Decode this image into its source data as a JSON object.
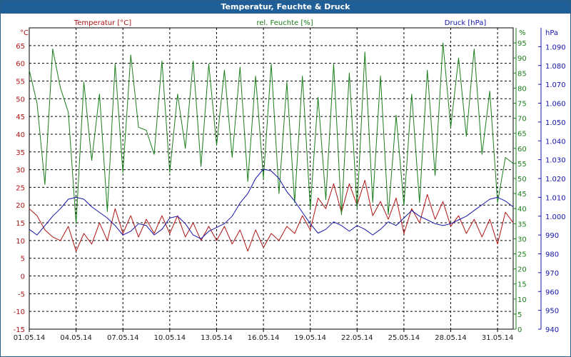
{
  "window": {
    "title": "Temperatur, Feuchte & Druck"
  },
  "chart_data": {
    "type": "line",
    "title": "Temperatur, Feuchte & Druck",
    "grid": true,
    "legend": "top",
    "x_ticks": [
      "01.05.14",
      "04.05.14",
      "07.05.14",
      "10.05.14",
      "13.05.14",
      "16.05.14",
      "19.05.14",
      "22.05.14",
      "25.05.14",
      "28.05.14",
      "31.05.14"
    ],
    "xlim": [
      "01.05.14",
      "01.06.14"
    ],
    "axes": {
      "temperature": {
        "unit": "°C",
        "ylim": [
          -15,
          70
        ],
        "ticks": [
          -15,
          -10,
          -5,
          0,
          5,
          10,
          15,
          20,
          25,
          30,
          35,
          40,
          45,
          50,
          55,
          60,
          65
        ],
        "color": "#b01414"
      },
      "humidity": {
        "unit": "%",
        "ylim": [
          0,
          100
        ],
        "ticks": [
          0,
          5,
          10,
          15,
          20,
          25,
          30,
          35,
          40,
          45,
          50,
          55,
          60,
          65,
          70,
          75,
          80,
          85,
          90,
          95
        ],
        "color": "#1b7d1b"
      },
      "pressure": {
        "unit": "hPa",
        "ylim": [
          940,
          1100
        ],
        "ticks": [
          "940",
          "950",
          "960",
          "970",
          "980",
          "990",
          "1.000",
          "1.010",
          "1.020",
          "1.030",
          "1.040",
          "1.050",
          "1.060",
          "1.070",
          "1.080",
          "1.090"
        ],
        "color": "#1414a8"
      }
    },
    "series": [
      {
        "name": "Temperatur [°C]",
        "axis": "temperature",
        "color": "#b01414",
        "points": [
          [
            "01.05.14",
            19
          ],
          [
            "01.05.14 12h",
            17
          ],
          [
            "02.05.14",
            13
          ],
          [
            "02.05.14 12h",
            11
          ],
          [
            "03.05.14",
            10
          ],
          [
            "03.05.14 12h",
            14
          ],
          [
            "04.05.14",
            7
          ],
          [
            "04.05.14 12h",
            12
          ],
          [
            "05.05.14",
            9
          ],
          [
            "05.05.14 12h",
            15
          ],
          [
            "06.05.14",
            10
          ],
          [
            "06.05.14 12h",
            19
          ],
          [
            "07.05.14",
            12
          ],
          [
            "07.05.14 12h",
            17
          ],
          [
            "08.05.14",
            11
          ],
          [
            "08.05.14 12h",
            16
          ],
          [
            "09.05.14",
            12
          ],
          [
            "09.05.14 12h",
            17
          ],
          [
            "10.05.14",
            12
          ],
          [
            "10.05.14 12h",
            17
          ],
          [
            "11.05.14",
            11
          ],
          [
            "11.05.14 12h",
            15
          ],
          [
            "12.05.14",
            10
          ],
          [
            "12.05.14 12h",
            14
          ],
          [
            "13.05.14",
            10
          ],
          [
            "13.05.14 12h",
            14
          ],
          [
            "14.05.14",
            9
          ],
          [
            "14.05.14 12h",
            13
          ],
          [
            "15.05.14",
            7
          ],
          [
            "15.05.14 12h",
            13
          ],
          [
            "16.05.14",
            8
          ],
          [
            "16.05.14 12h",
            12
          ],
          [
            "17.05.14",
            10
          ],
          [
            "17.05.14 12h",
            14
          ],
          [
            "18.05.14",
            12
          ],
          [
            "18.05.14 12h",
            17
          ],
          [
            "19.05.14",
            13
          ],
          [
            "19.05.14 12h",
            22
          ],
          [
            "20.05.14",
            19
          ],
          [
            "20.05.14 12h",
            26
          ],
          [
            "21.05.14",
            18
          ],
          [
            "21.05.14 12h",
            26
          ],
          [
            "22.05.14",
            20
          ],
          [
            "22.05.14 12h",
            27
          ],
          [
            "23.05.14",
            17
          ],
          [
            "23.05.14 12h",
            21
          ],
          [
            "24.05.14",
            16
          ],
          [
            "24.05.14 12h",
            22
          ],
          [
            "25.05.14",
            12
          ],
          [
            "25.05.14 12h",
            19
          ],
          [
            "26.05.14",
            15
          ],
          [
            "26.05.14 12h",
            23
          ],
          [
            "27.05.14",
            16
          ],
          [
            "27.05.14 12h",
            21
          ],
          [
            "28.05.14",
            14
          ],
          [
            "28.05.14 12h",
            17
          ],
          [
            "29.05.14",
            12
          ],
          [
            "29.05.14 12h",
            16
          ],
          [
            "30.05.14",
            11
          ],
          [
            "30.05.14 12h",
            16
          ],
          [
            "31.05.14",
            9
          ],
          [
            "31.05.14 12h",
            18
          ],
          [
            "01.06.14",
            15
          ]
        ]
      },
      {
        "name": "rel. Feuchte [%]",
        "axis": "humidity",
        "color": "#1b7d1b",
        "points": [
          [
            "01.05.14",
            86
          ],
          [
            "01.05.14 12h",
            75
          ],
          [
            "02.05.14",
            48
          ],
          [
            "02.05.14 12h",
            93
          ],
          [
            "03.05.14",
            80
          ],
          [
            "03.05.14 12h",
            72
          ],
          [
            "04.05.14",
            35
          ],
          [
            "04.05.14 12h",
            82
          ],
          [
            "05.05.14",
            56
          ],
          [
            "05.05.14 12h",
            78
          ],
          [
            "06.05.14",
            39
          ],
          [
            "06.05.14 12h",
            88
          ],
          [
            "07.05.14",
            52
          ],
          [
            "07.05.14 12h",
            91
          ],
          [
            "08.05.14",
            67
          ],
          [
            "08.05.14 12h",
            66
          ],
          [
            "09.05.14",
            58
          ],
          [
            "09.05.14 12h",
            89
          ],
          [
            "10.05.14",
            52
          ],
          [
            "10.05.14 12h",
            78
          ],
          [
            "11.05.14",
            60
          ],
          [
            "11.05.14 12h",
            89
          ],
          [
            "12.05.14",
            54
          ],
          [
            "12.05.14 12h",
            88
          ],
          [
            "13.05.14",
            61
          ],
          [
            "13.05.14 12h",
            86
          ],
          [
            "14.05.14",
            57
          ],
          [
            "14.05.14 12h",
            87
          ],
          [
            "15.05.14",
            49
          ],
          [
            "15.05.14 12h",
            84
          ],
          [
            "16.05.14",
            50
          ],
          [
            "16.05.14 12h",
            88
          ],
          [
            "17.05.14",
            45
          ],
          [
            "17.05.14 12h",
            82
          ],
          [
            "18.05.14",
            42
          ],
          [
            "18.05.14 12h",
            84
          ],
          [
            "19.05.14",
            40
          ],
          [
            "19.05.14 12h",
            77
          ],
          [
            "20.05.14",
            43
          ],
          [
            "20.05.14 12h",
            88
          ],
          [
            "21.05.14",
            38
          ],
          [
            "21.05.14 12h",
            85
          ],
          [
            "22.05.14",
            40
          ],
          [
            "22.05.14 12h",
            92
          ],
          [
            "23.05.14",
            42
          ],
          [
            "23.05.14 12h",
            84
          ],
          [
            "24.05.14",
            38
          ],
          [
            "24.05.14 12h",
            71
          ],
          [
            "25.05.14",
            41
          ],
          [
            "25.05.14 12h",
            78
          ],
          [
            "26.05.14",
            42
          ],
          [
            "26.05.14 12h",
            86
          ],
          [
            "27.05.14",
            51
          ],
          [
            "27.05.14 12h",
            95
          ],
          [
            "28.05.14",
            67
          ],
          [
            "28.05.14 12h",
            90
          ],
          [
            "29.05.14",
            64
          ],
          [
            "29.05.14 12h",
            93
          ],
          [
            "30.05.14",
            58
          ],
          [
            "30.05.14 12h",
            79
          ],
          [
            "31.05.14",
            42
          ],
          [
            "31.05.14 12h",
            57
          ],
          [
            "01.06.14",
            55
          ]
        ]
      },
      {
        "name": "Druck [hPa]",
        "axis": "pressure",
        "color": "#1414a8",
        "points": [
          [
            "01.05.14",
            993
          ],
          [
            "01.05.14 12h",
            990
          ],
          [
            "02.05.14",
            995
          ],
          [
            "02.05.14 12h",
            1000
          ],
          [
            "03.05.14",
            1004
          ],
          [
            "03.05.14 12h",
            1009
          ],
          [
            "04.05.14",
            1010
          ],
          [
            "04.05.14 12h",
            1009
          ],
          [
            "05.05.14",
            1005
          ],
          [
            "05.05.14 12h",
            1002
          ],
          [
            "06.05.14",
            999
          ],
          [
            "06.05.14 12h",
            995
          ],
          [
            "07.05.14",
            990
          ],
          [
            "07.05.14 12h",
            992
          ],
          [
            "08.05.14",
            996
          ],
          [
            "08.05.14 12h",
            995
          ],
          [
            "09.05.14",
            990
          ],
          [
            "09.05.14 12h",
            993
          ],
          [
            "10.05.14",
            999
          ],
          [
            "10.05.14 12h",
            1000
          ],
          [
            "11.05.14",
            996
          ],
          [
            "11.05.14 12h",
            990
          ],
          [
            "12.05.14",
            988
          ],
          [
            "12.05.14 12h",
            992
          ],
          [
            "13.05.14",
            994
          ],
          [
            "13.05.14 12h",
            996
          ],
          [
            "14.05.14",
            1000
          ],
          [
            "14.05.14 12h",
            1007
          ],
          [
            "15.05.14",
            1012
          ],
          [
            "15.05.14 12h",
            1020
          ],
          [
            "16.05.14",
            1025
          ],
          [
            "16.05.14 12h",
            1024
          ],
          [
            "17.05.14",
            1020
          ],
          [
            "17.05.14 12h",
            1013
          ],
          [
            "18.05.14",
            1008
          ],
          [
            "18.05.14 12h",
            1002
          ],
          [
            "19.05.14",
            996
          ],
          [
            "19.05.14 12h",
            991
          ],
          [
            "20.05.14",
            993
          ],
          [
            "20.05.14 12h",
            997
          ],
          [
            "21.05.14",
            995
          ],
          [
            "21.05.14 12h",
            992
          ],
          [
            "22.05.14",
            995
          ],
          [
            "22.05.14 12h",
            993
          ],
          [
            "23.05.14",
            990
          ],
          [
            "23.05.14 12h",
            993
          ],
          [
            "24.05.14",
            997
          ],
          [
            "24.05.14 12h",
            995
          ],
          [
            "25.05.14",
            999
          ],
          [
            "25.05.14 12h",
            1003
          ],
          [
            "26.05.14",
            1000
          ],
          [
            "26.05.14 12h",
            998
          ],
          [
            "27.05.14",
            996
          ],
          [
            "27.05.14 12h",
            995
          ],
          [
            "28.05.14",
            996
          ],
          [
            "28.05.14 12h",
            998
          ],
          [
            "29.05.14",
            1000
          ],
          [
            "29.05.14 12h",
            1003
          ],
          [
            "30.05.14",
            1006
          ],
          [
            "30.05.14 12h",
            1009
          ],
          [
            "31.05.14",
            1010
          ],
          [
            "31.05.14 12h",
            1008
          ],
          [
            "01.06.14",
            1005
          ]
        ]
      }
    ]
  }
}
